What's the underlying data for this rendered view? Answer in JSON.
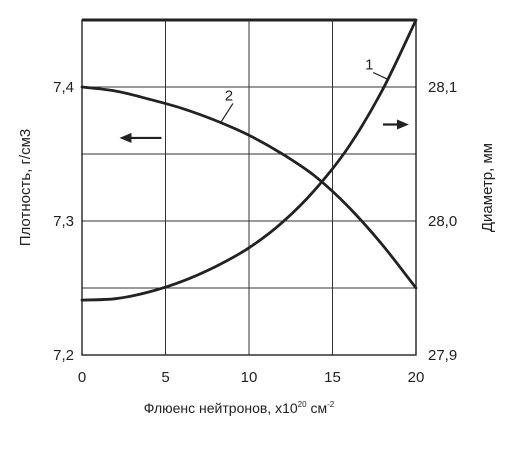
{
  "chart_data": {
    "type": "line",
    "xlabel_main": "Флюенс нейтронов, x10",
    "xlabel_exp1": "20",
    "xlabel_unit": " см",
    "xlabel_exp2": "-2",
    "ylabel_left": "Плотность, г/см3",
    "ylabel_right": "Диаметр, мм",
    "xlim": [
      0,
      20
    ],
    "ylim_left": [
      7.2,
      7.45
    ],
    "ylim_right": [
      27.9,
      28.15
    ],
    "x_ticks": [
      0,
      5,
      10,
      15,
      20
    ],
    "x_tick_labels": [
      "0",
      "5",
      "10",
      "15",
      "20"
    ],
    "y_left_ticks": [
      7.2,
      7.3,
      7.4
    ],
    "y_left_tick_labels": [
      "7,2",
      "7,3",
      "7,4"
    ],
    "y_right_ticks": [
      27.9,
      28.0,
      28.1
    ],
    "y_right_tick_labels": [
      "27,9",
      "28,0",
      "28,1"
    ],
    "h_gridlines_left": [
      7.25,
      7.3,
      7.35,
      7.4
    ],
    "v_gridlines": [
      5,
      10,
      15
    ],
    "series": [
      {
        "name": "1",
        "axis": "right",
        "x": [
          0,
          2,
          4,
          6,
          8,
          10,
          12,
          14,
          16,
          18,
          20
        ],
        "values": [
          27.941,
          27.942,
          27.947,
          27.955,
          27.966,
          27.98,
          27.999,
          28.024,
          28.056,
          28.098,
          28.15
        ]
      },
      {
        "name": "2",
        "axis": "left",
        "x": [
          0,
          2,
          4,
          6,
          8,
          10,
          12,
          14,
          16,
          18,
          20
        ],
        "values": [
          7.4,
          7.397,
          7.391,
          7.384,
          7.375,
          7.364,
          7.35,
          7.333,
          7.31,
          7.282,
          7.25
        ]
      }
    ],
    "arrows": [
      {
        "direction": "left",
        "indicates_axis": "left",
        "x": 3.5,
        "y_left": 7.362
      },
      {
        "direction": "right",
        "indicates_axis": "right",
        "x": 18.8,
        "y_left": 7.372
      }
    ],
    "series_label_positions": [
      {
        "name": "1",
        "x": 17.2,
        "y_left": 7.413,
        "leader_to_x": 18.3
      },
      {
        "name": "2",
        "x": 8.8,
        "y_left": 7.39,
        "leader_to_x": 8.3
      }
    ]
  }
}
